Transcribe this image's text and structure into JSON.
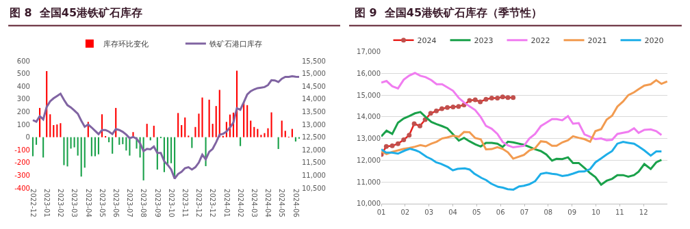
{
  "chart_data": [
    {
      "type": "bar",
      "title": "图 8  全国45港铁矿石库存",
      "legend": "top",
      "grid": false,
      "categories": [
        "2022-12",
        null,
        null,
        null,
        "2023-01",
        null,
        null,
        null,
        "2023-02",
        null,
        null,
        null,
        "2023-03",
        null,
        null,
        null,
        "2023-04",
        null,
        null,
        null,
        "2023-05",
        null,
        null,
        null,
        "2023-06",
        null,
        null,
        null,
        "2023-07",
        null,
        null,
        null,
        "2023-08",
        null,
        null,
        null,
        "2023-09",
        null,
        null,
        null,
        "2023-10",
        null,
        null,
        null,
        "2023-11",
        null,
        null,
        null,
        "2023-12",
        null,
        null,
        null,
        "2023-12",
        null,
        null,
        null,
        "2024-01",
        null,
        null,
        null,
        "2024-02",
        null,
        null,
        null,
        "2024-03",
        null,
        null,
        null,
        "2024-04",
        null,
        null,
        null,
        "2024-05",
        null,
        null,
        null,
        "2024-06",
        null
      ],
      "ylim": [
        -400,
        600
      ],
      "yticks": [
        -400,
        -300,
        -200,
        -100,
        0,
        100,
        200,
        300,
        400,
        500,
        600
      ],
      "y2lim": [
        10500,
        15500
      ],
      "y2ticks": [
        {
          "value": 10500,
          "label": "10,500"
        },
        {
          "value": 11000,
          "label": "11,000"
        },
        {
          "value": 11500,
          "label": "11,500"
        },
        {
          "value": 12000,
          "label": "12,000"
        },
        {
          "value": 12500,
          "label": "12,500"
        },
        {
          "value": 13000,
          "label": "13,000"
        },
        {
          "value": 13500,
          "label": "13,500"
        },
        {
          "value": 14000,
          "label": "14,000"
        },
        {
          "value": 14500,
          "label": "14,500"
        },
        {
          "value": 15000,
          "label": "15,000"
        },
        {
          "value": 15500,
          "label": "15,500"
        }
      ],
      "series": [
        {
          "type": "bar",
          "name": "库存环比变化",
          "color": "#ff0000",
          "values": [
            -150,
            -60,
            230,
            -160,
            520,
            180,
            95,
            100,
            110,
            -220,
            -230,
            -90,
            -80,
            -145,
            -310,
            -240,
            120,
            -150,
            -150,
            -135,
            180,
            5,
            -40,
            -130,
            230,
            -60,
            -55,
            -105,
            -145,
            40,
            -90,
            -160,
            -340,
            105,
            -25,
            90,
            -255,
            -5,
            -275,
            -210,
            -205,
            -325,
            190,
            95,
            155,
            12,
            -85,
            80,
            185,
            312,
            -228,
            295,
            105,
            245,
            372,
            10,
            120,
            178,
            193,
            523,
            -70,
            273,
            252,
            130,
            80,
            65,
            18,
            32,
            70,
            195,
            0,
            -93,
            130,
            50,
            3,
            65,
            -34,
            -12
          ],
          "colors": [
            "#1aa14a",
            "#1aa14a",
            "#ff0000",
            "#1aa14a",
            "#ff0000",
            "#ff0000",
            "#ff0000",
            "#ff0000",
            "#ff0000",
            "#1aa14a",
            "#1aa14a",
            "#1aa14a",
            "#1aa14a",
            "#1aa14a",
            "#1aa14a",
            "#1aa14a",
            "#ff0000",
            "#1aa14a",
            "#1aa14a",
            "#1aa14a",
            "#ff0000",
            "#ff0000",
            "#1aa14a",
            "#1aa14a",
            "#ff0000",
            "#1aa14a",
            "#1aa14a",
            "#1aa14a",
            "#1aa14a",
            "#ff0000",
            "#1aa14a",
            "#1aa14a",
            "#1aa14a",
            "#ff0000",
            "#1aa14a",
            "#ff0000",
            "#1aa14a",
            "#1aa14a",
            "#1aa14a",
            "#1aa14a",
            "#1aa14a",
            "#1aa14a",
            "#ff0000",
            "#ff0000",
            "#ff0000",
            "#ff0000",
            "#1aa14a",
            "#ff0000",
            "#ff0000",
            "#ff0000",
            "#1aa14a",
            "#ff0000",
            "#ff0000",
            "#ff0000",
            "#ff0000",
            "#ff0000",
            "#ff0000",
            "#ff0000",
            "#ff0000",
            "#ff0000",
            "#1aa14a",
            "#ff0000",
            "#ff0000",
            "#ff0000",
            "#ff0000",
            "#ff0000",
            "#ff0000",
            "#ff0000",
            "#ff0000",
            "#ff0000",
            "#ff0000",
            "#1aa14a",
            "#ff0000",
            "#ff0000",
            "#ff0000",
            "#ff0000",
            "#1aa14a",
            "#1aa14a"
          ]
        },
        {
          "type": "line",
          "name": "铁矿石港口库存",
          "color": "#8064a2",
          "axis": "y2",
          "values": [
            13170,
            13110,
            13330,
            13200,
            13690,
            13910,
            14030,
            14120,
            14210,
            13970,
            13760,
            13670,
            13550,
            13420,
            13150,
            12910,
            13000,
            12880,
            12750,
            12620,
            12780,
            12780,
            12720,
            12620,
            12820,
            12780,
            12710,
            12600,
            12460,
            12510,
            12440,
            12260,
            11950,
            12040,
            12020,
            12130,
            11880,
            11880,
            11550,
            11410,
            11230,
            10870,
            11050,
            11140,
            11280,
            11320,
            11230,
            11320,
            11500,
            11810,
            11630,
            11920,
            12040,
            12300,
            12600,
            12630,
            12720,
            12880,
            13080,
            13640,
            13580,
            13870,
            14180,
            14310,
            14380,
            14430,
            14450,
            14470,
            14550,
            14740,
            14730,
            14670,
            14800,
            14870,
            14870,
            14900,
            14880,
            14870
          ]
        }
      ]
    },
    {
      "type": "line",
      "title": "图 9  全国45港铁矿石库存（季节性）",
      "legend": "top",
      "grid": "y",
      "marker": "none",
      "xlim": [
        1,
        13
      ],
      "xticks": [
        {
          "value": 1,
          "label": "01"
        },
        {
          "value": 2,
          "label": "02"
        },
        {
          "value": 3,
          "label": "03"
        },
        {
          "value": 4,
          "label": "04"
        },
        {
          "value": 5,
          "label": "05"
        },
        {
          "value": 6,
          "label": "06"
        },
        {
          "value": 7,
          "label": "07"
        },
        {
          "value": 8,
          "label": "08"
        },
        {
          "value": 9,
          "label": "09"
        },
        {
          "value": 10,
          "label": "10"
        },
        {
          "value": 11,
          "label": "11"
        },
        {
          "value": 12,
          "label": "12"
        }
      ],
      "ylim": [
        10000,
        17000
      ],
      "yticks": [
        {
          "value": 10000,
          "label": "10,000"
        },
        {
          "value": 11000,
          "label": "11,000"
        },
        {
          "value": 12000,
          "label": "12,000"
        },
        {
          "value": 13000,
          "label": "13,000"
        },
        {
          "value": 14000,
          "label": "14,000"
        },
        {
          "value": 15000,
          "label": "15,000"
        },
        {
          "value": 16000,
          "label": "16,000"
        },
        {
          "value": 17000,
          "label": "17,000"
        }
      ],
      "series": [
        {
          "name": "2024",
          "color": "#e8201c",
          "marker": "circle",
          "x": [
            1.0,
            1.21,
            1.46,
            1.7,
            1.94,
            2.17,
            2.38,
            2.62,
            2.84,
            3.07,
            3.31,
            3.54,
            3.77,
            4.01,
            4.24,
            4.47,
            4.7,
            4.94,
            5.15,
            5.39,
            5.63,
            5.87,
            6.09,
            6.31,
            6.53
          ],
          "values": [
            12260,
            12630,
            12660,
            12760,
            12940,
            13150,
            13680,
            13580,
            13870,
            14160,
            14270,
            14370,
            14430,
            14450,
            14480,
            14550,
            14750,
            14780,
            14690,
            14810,
            14860,
            14860,
            14920,
            14890,
            14890
          ]
        },
        {
          "name": "2023",
          "color": "#1aa14a",
          "x": [
            1.0,
            1.22,
            1.46,
            1.7,
            1.94,
            2.17,
            2.41,
            2.64,
            2.86,
            3.1,
            3.32,
            3.55,
            3.77,
            4.01,
            4.25,
            4.47,
            4.7,
            4.94,
            5.17,
            5.39,
            5.63,
            5.87,
            6.09,
            6.31,
            6.53,
            6.98,
            7.21,
            7.45,
            7.69,
            7.92,
            8.16,
            8.35,
            8.59,
            8.83,
            9.04,
            9.28,
            9.52,
            9.76,
            9.98,
            10.22,
            10.45,
            10.68,
            10.9,
            11.14,
            11.36,
            11.6,
            11.79,
            12.03,
            12.3,
            12.53,
            12.75
          ],
          "values": [
            13100,
            13360,
            13210,
            13730,
            13920,
            14030,
            14160,
            14220,
            13990,
            13760,
            13660,
            13570,
            13470,
            13190,
            12900,
            13030,
            12870,
            12730,
            12630,
            12800,
            12800,
            12760,
            12610,
            12850,
            12820,
            12710,
            12610,
            12500,
            12420,
            12260,
            11980,
            12060,
            12050,
            12130,
            11870,
            11870,
            11640,
            11400,
            11220,
            10870,
            11050,
            11140,
            11310,
            11310,
            11240,
            11310,
            11470,
            11820,
            11590,
            11900,
            12010
          ]
        },
        {
          "name": "2022",
          "color": "#f07cf0",
          "x": [
            1.0,
            1.22,
            1.46,
            1.7,
            1.94,
            2.17,
            2.41,
            2.64,
            2.86,
            3.1,
            3.32,
            3.55,
            3.77,
            4.01,
            4.25,
            4.47,
            4.7,
            4.94,
            5.17,
            5.39,
            5.63,
            5.87,
            6.09,
            6.31,
            6.53,
            6.98,
            7.21,
            7.45,
            7.69,
            7.92,
            8.16,
            8.35,
            8.59,
            8.83,
            9.04,
            9.28,
            9.52,
            9.76,
            9.98,
            10.22,
            10.45,
            10.68,
            10.9,
            11.14,
            11.36,
            11.6,
            11.79,
            12.03,
            12.3,
            12.53,
            12.75
          ],
          "values": [
            15580,
            15650,
            15410,
            15310,
            15710,
            15900,
            16020,
            15890,
            15830,
            15690,
            15500,
            15500,
            15360,
            15200,
            14870,
            14660,
            14480,
            14310,
            13990,
            13580,
            13450,
            13210,
            12840,
            12680,
            12590,
            12660,
            13000,
            13210,
            13570,
            13730,
            13890,
            13890,
            13840,
            14030,
            13680,
            13710,
            13190,
            13080,
            12970,
            13000,
            12920,
            12940,
            13210,
            13260,
            13310,
            13470,
            13260,
            13400,
            13420,
            13340,
            13160
          ]
        },
        {
          "name": "2021",
          "color": "#f29b50",
          "x": [
            1.0,
            1.22,
            1.46,
            1.7,
            1.94,
            2.17,
            2.41,
            2.64,
            2.86,
            3.1,
            3.32,
            3.55,
            3.77,
            4.01,
            4.25,
            4.47,
            4.7,
            4.94,
            5.17,
            5.39,
            5.63,
            5.87,
            6.09,
            6.31,
            6.53,
            6.98,
            7.21,
            7.45,
            7.69,
            7.92,
            8.16,
            8.35,
            8.59,
            8.83,
            9.04,
            9.28,
            9.52,
            9.76,
            9.98,
            10.22,
            10.45,
            10.68,
            10.9,
            11.14,
            11.36,
            11.6,
            11.79,
            12.03,
            12.3,
            12.53,
            12.75,
            12.99
          ],
          "values": [
            12400,
            12280,
            12380,
            12450,
            12520,
            12560,
            12620,
            12690,
            12640,
            12760,
            12850,
            13000,
            13050,
            13130,
            13080,
            13300,
            13290,
            13020,
            12960,
            12500,
            12510,
            12600,
            12520,
            12360,
            12070,
            12240,
            12450,
            12550,
            12870,
            12840,
            12660,
            12660,
            12820,
            12920,
            13100,
            13030,
            12970,
            12850,
            13340,
            13430,
            13870,
            14050,
            14470,
            14710,
            15000,
            15130,
            15270,
            15440,
            15500,
            15690,
            15520,
            15630
          ]
        },
        {
          "name": "2020",
          "color": "#1eaee8",
          "x": [
            1.0,
            1.2,
            1.45,
            1.7,
            2.0,
            2.2,
            2.45,
            2.6,
            2.9,
            3.1,
            3.3,
            3.5,
            3.8,
            4.0,
            4.2,
            4.5,
            4.7,
            4.9,
            5.2,
            5.4,
            5.6,
            5.9,
            6.1,
            6.3,
            6.54,
            6.78,
            6.98,
            7.21,
            7.45,
            7.69,
            7.92,
            8.16,
            8.35,
            8.59,
            8.83,
            9.04,
            9.28,
            9.52,
            9.76,
            9.98,
            10.22,
            10.45,
            10.68,
            10.9,
            11.14,
            11.36,
            11.6,
            11.79,
            12.03,
            12.3,
            12.53,
            12.75
          ],
          "values": [
            12500,
            12350,
            12350,
            12300,
            12450,
            12530,
            12450,
            12380,
            12150,
            12050,
            11900,
            11830,
            11680,
            11530,
            11600,
            11620,
            11570,
            11380,
            11180,
            11080,
            10920,
            10770,
            10730,
            10660,
            10640,
            10790,
            10820,
            10890,
            11030,
            11370,
            11420,
            11370,
            11350,
            11270,
            11310,
            11380,
            11470,
            11480,
            11590,
            11900,
            12080,
            12260,
            12420,
            12760,
            12840,
            12800,
            12760,
            12630,
            12450,
            12210,
            12400,
            12400
          ]
        }
      ]
    }
  ]
}
